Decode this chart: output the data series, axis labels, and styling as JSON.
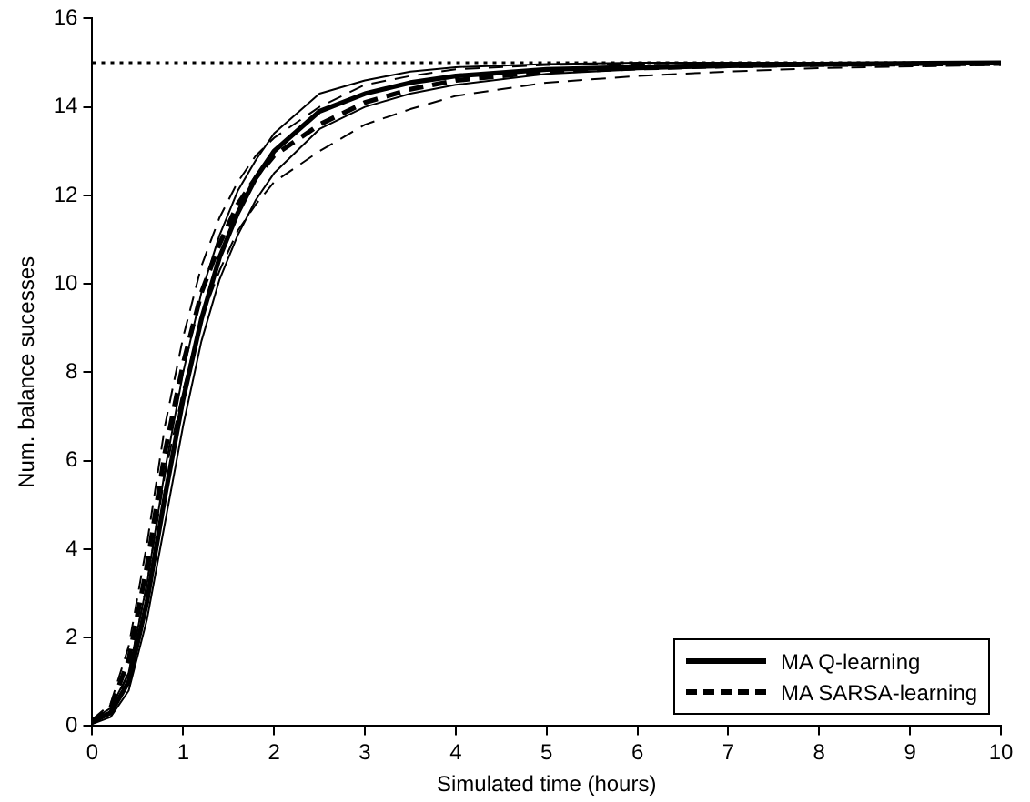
{
  "chart_data": {
    "type": "line",
    "xlabel": "Simulated time (hours)",
    "ylabel": "Num. balance sucesses",
    "x": [
      0,
      0.2,
      0.4,
      0.6,
      0.8,
      1.0,
      1.2,
      1.4,
      1.6,
      1.8,
      2.0,
      2.5,
      3.0,
      3.5,
      4.0,
      5.0,
      6.0,
      7.0,
      8.0,
      10.0
    ],
    "series": [
      {
        "name": "MA Q-learning",
        "color": "#000000",
        "line_style": "solid",
        "values": [
          0.1,
          0.3,
          1.0,
          2.8,
          5.2,
          7.4,
          9.2,
          10.6,
          11.6,
          12.4,
          13.0,
          13.9,
          14.3,
          14.55,
          14.7,
          14.85,
          14.9,
          14.95,
          14.97,
          15.0
        ]
      },
      {
        "color": "#000000",
        "line_style": "solid",
        "values": [
          0.05,
          0.2,
          0.8,
          2.4,
          4.6,
          6.8,
          8.7,
          10.1,
          11.1,
          11.9,
          12.5,
          13.5,
          14.0,
          14.3,
          14.5,
          14.75,
          14.85,
          14.9,
          14.93,
          14.97
        ]
      },
      {
        "color": "#000000",
        "line_style": "solid",
        "values": [
          0.15,
          0.4,
          1.2,
          3.2,
          5.8,
          8.0,
          9.8,
          11.1,
          12.1,
          12.8,
          13.4,
          14.3,
          14.6,
          14.8,
          14.9,
          14.97,
          15.0,
          15.0,
          15.0,
          15.0
        ]
      },
      {
        "name": "MA SARSA-learning",
        "color": "#000000",
        "line_style": "dashed",
        "values": [
          0.1,
          0.4,
          1.5,
          3.6,
          6.2,
          8.2,
          9.8,
          10.9,
          11.8,
          12.4,
          12.9,
          13.6,
          14.1,
          14.4,
          14.6,
          14.8,
          14.88,
          14.93,
          14.96,
          14.98
        ]
      },
      {
        "color": "#000000",
        "line_style": "dashed",
        "values": [
          0.05,
          0.3,
          1.2,
          3.2,
          5.7,
          7.6,
          9.2,
          10.3,
          11.2,
          11.8,
          12.3,
          13.0,
          13.6,
          13.95,
          14.25,
          14.55,
          14.7,
          14.8,
          14.88,
          14.95
        ]
      },
      {
        "color": "#000000",
        "line_style": "dashed",
        "values": [
          0.15,
          0.5,
          1.8,
          4.1,
          6.8,
          8.8,
          10.4,
          11.5,
          12.3,
          12.9,
          13.3,
          14.0,
          14.5,
          14.7,
          14.85,
          14.95,
          14.98,
          15.0,
          15.0,
          15.0
        ]
      }
    ],
    "xlim": [
      0,
      10
    ],
    "ylim": [
      0,
      16
    ],
    "xticks": [
      0,
      1,
      2,
      3,
      4,
      5,
      6,
      7,
      8,
      9,
      10
    ],
    "yticks": [
      0,
      2,
      4,
      6,
      8,
      10,
      12,
      14,
      16
    ],
    "ref_lines": [
      {
        "axis": "y",
        "value": 15,
        "line_style": "dotted"
      }
    ],
    "legend": "bottom right",
    "grid": false
  }
}
